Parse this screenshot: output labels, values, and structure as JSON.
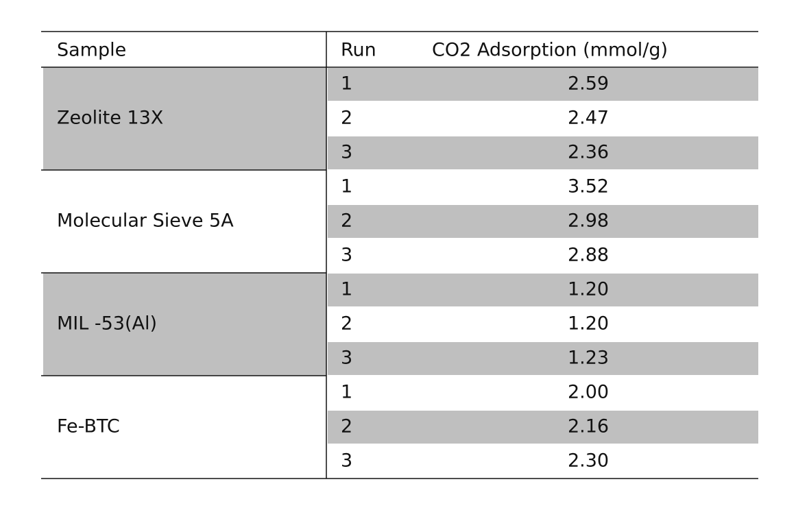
{
  "table": {
    "header": [
      "Sample",
      "Run",
      "CO2 Adsorption (mmol/g)"
    ],
    "groups": [
      {
        "sample": "Zeolite 13X",
        "rows": [
          [
            "1",
            "2.59"
          ],
          [
            "2",
            "2.47"
          ],
          [
            "3",
            "2.36"
          ]
        ]
      },
      {
        "sample": "Molecular Sieve 5A",
        "rows": [
          [
            "1",
            "3.52"
          ],
          [
            "2",
            "2.98"
          ],
          [
            "3",
            "2.88"
          ]
        ]
      },
      {
        "sample": "MIL -53(Al)",
        "rows": [
          [
            "1",
            "1.20"
          ],
          [
            "2",
            "1.20"
          ],
          [
            "3",
            "1.23"
          ]
        ]
      },
      {
        "sample": "Fe-BTC",
        "rows": [
          [
            "1",
            "2.00"
          ],
          [
            "2",
            "2.16"
          ],
          [
            "3",
            "2.30"
          ]
        ]
      }
    ]
  }
}
